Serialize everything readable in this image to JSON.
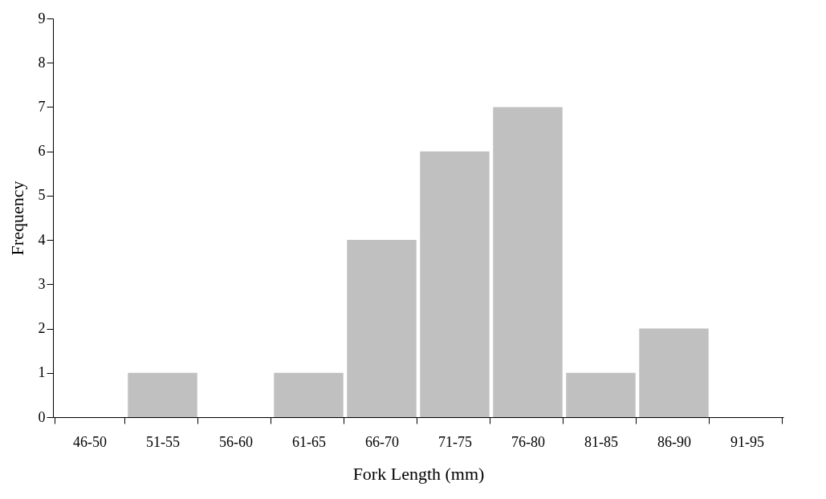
{
  "chart_data": {
    "type": "bar",
    "xlabel": "Fork Length (mm)",
    "ylabel": "Frequency",
    "categories": [
      "46-50",
      "51-55",
      "56-60",
      "61-65",
      "66-70",
      "71-75",
      "76-80",
      "81-85",
      "86-90",
      "91-95"
    ],
    "values": [
      0,
      1,
      0,
      1,
      4,
      6,
      7,
      1,
      2,
      0
    ],
    "color": "#c0c0c0",
    "ylim": [
      0,
      9
    ],
    "yticks": [
      0,
      1,
      2,
      3,
      4,
      5,
      6,
      7,
      8,
      9
    ],
    "grid": false
  }
}
